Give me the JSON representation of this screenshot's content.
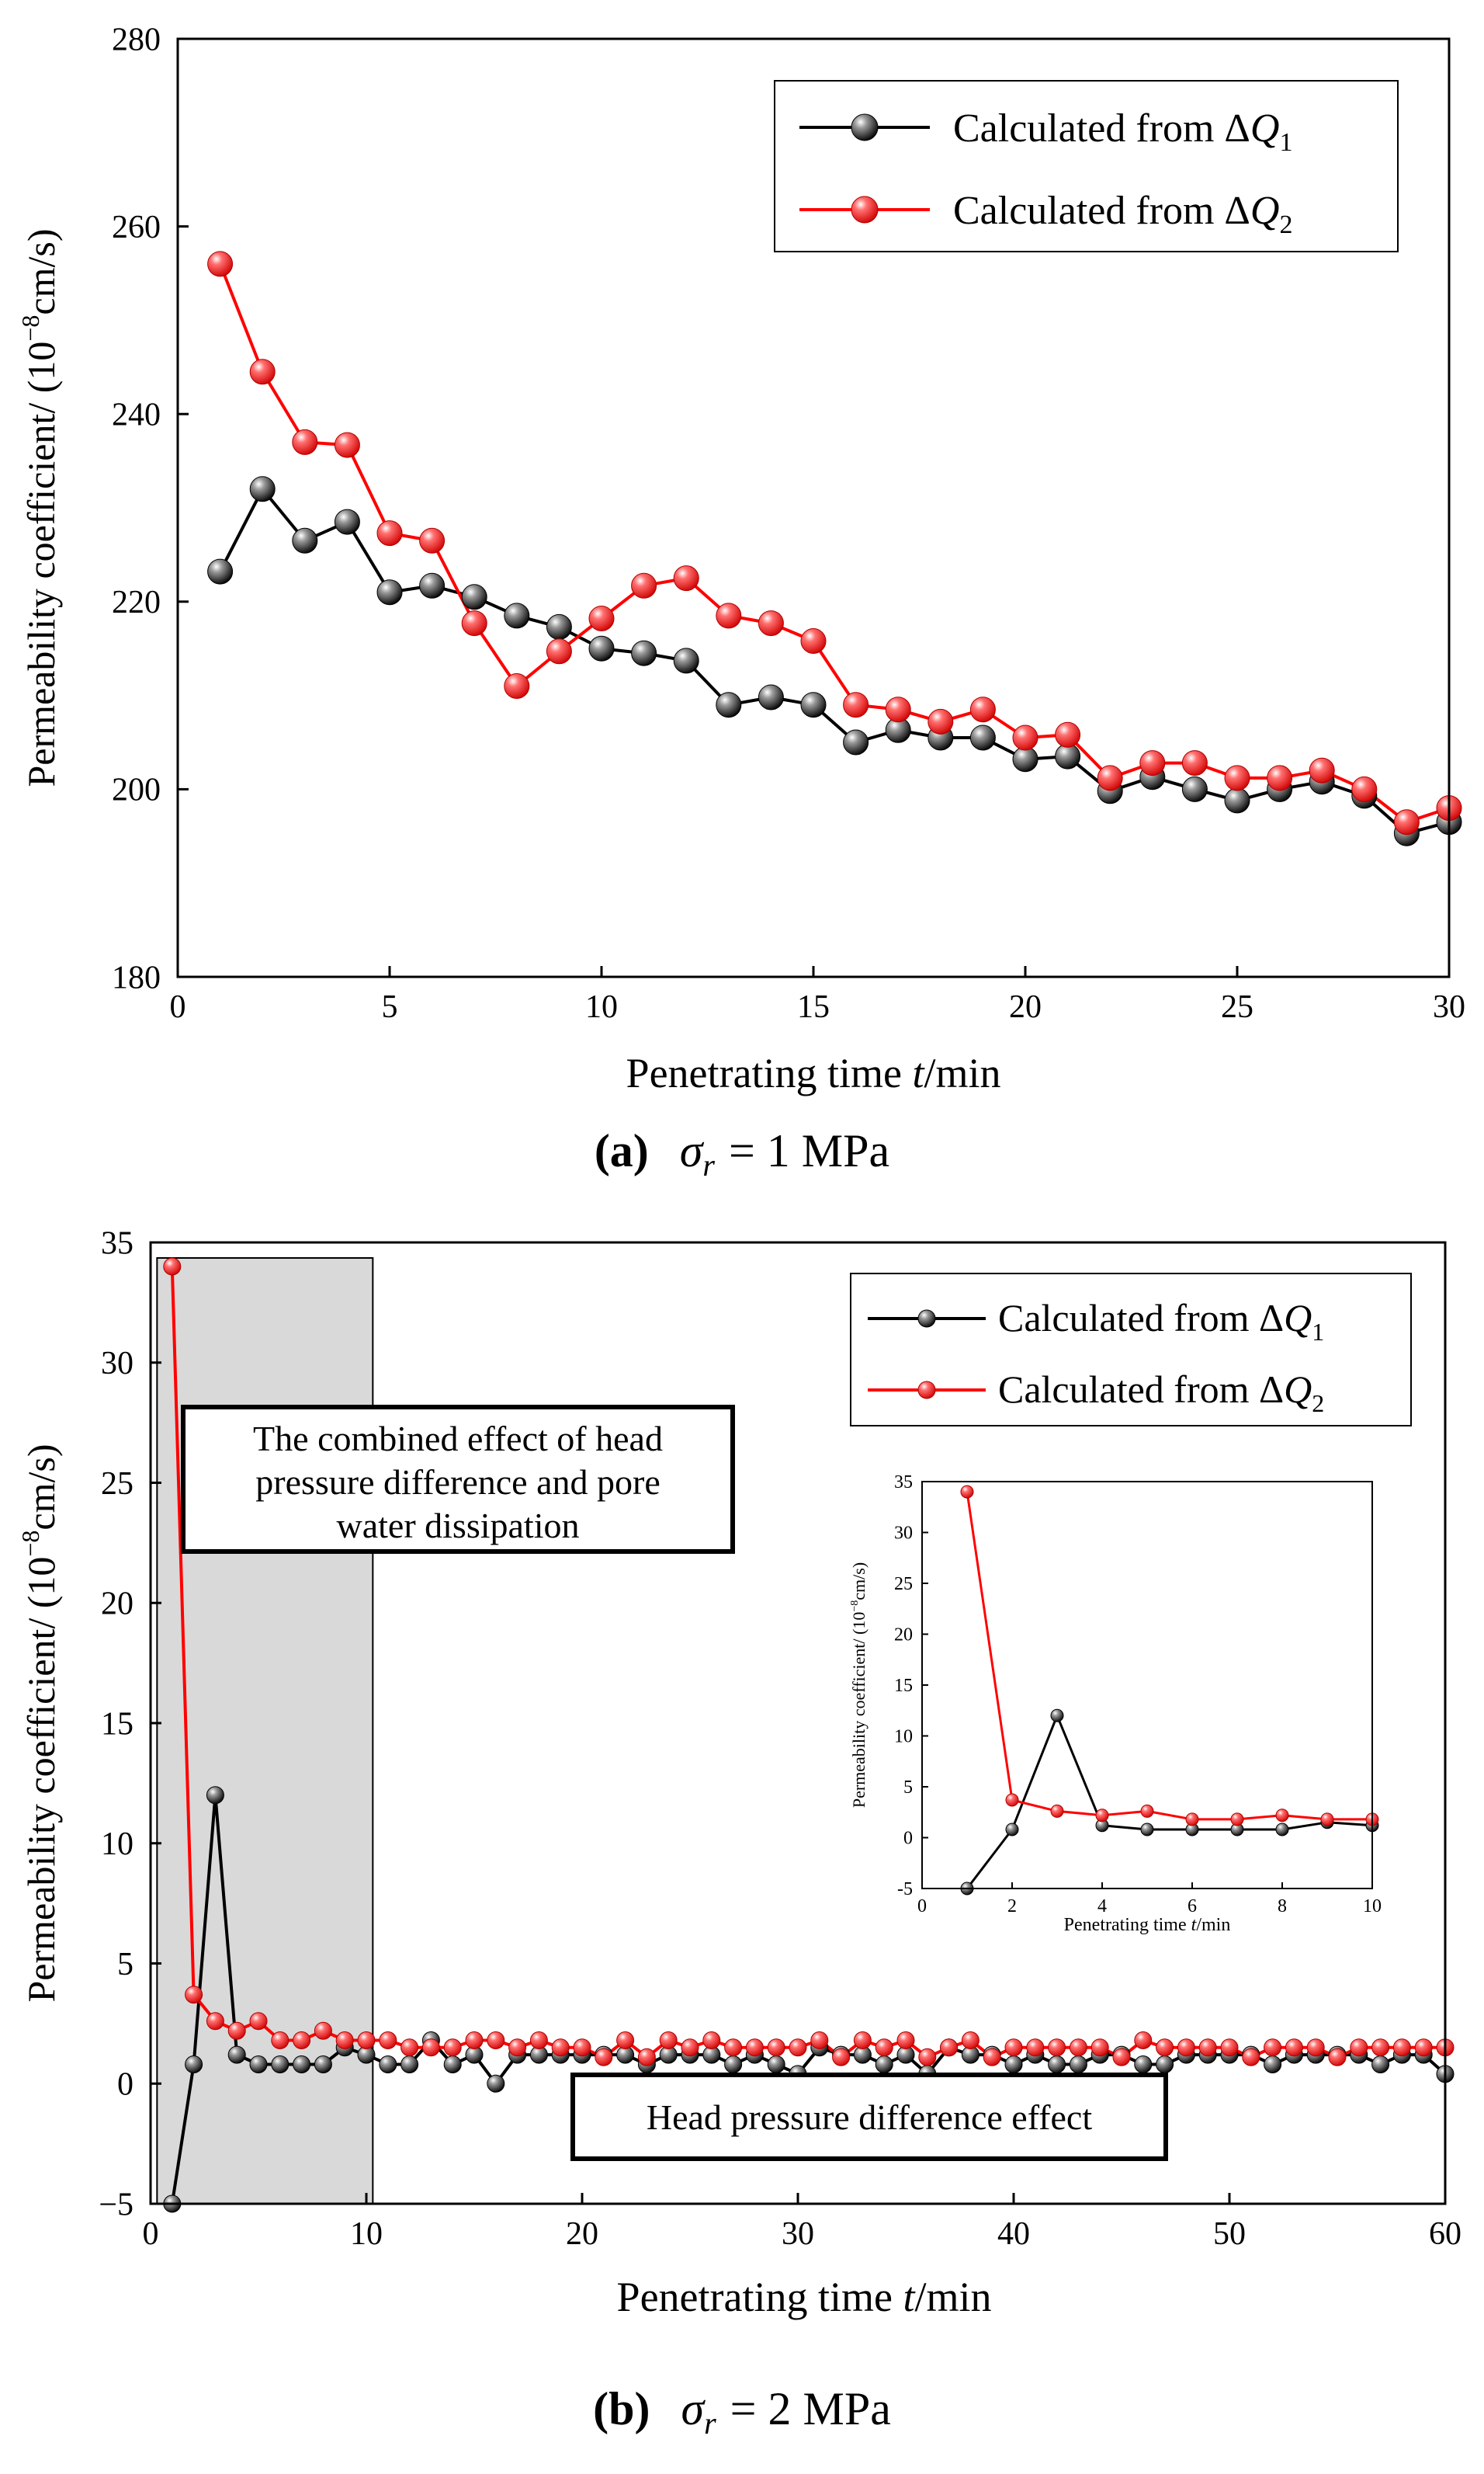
{
  "charts": [
    {
      "type": "line",
      "caption_letter": "(a)",
      "caption_sigma": "σ",
      "caption_sub": "r",
      "caption_value": "= 1 MPa",
      "xlabel_pre": "Penetrating time ",
      "xlabel_var": "t",
      "xlabel_post": "/min",
      "ylabel_pre": "Permeability coefficient/ (10",
      "ylabel_sup": "−8",
      "ylabel_post": "cm/s)",
      "xlim": [
        0,
        30
      ],
      "ylim": [
        180,
        280
      ],
      "xticks": [
        0,
        5,
        10,
        15,
        20,
        25,
        30
      ],
      "yticks": [
        180,
        200,
        220,
        240,
        260,
        280
      ],
      "legend_position": "top-right",
      "series": [
        {
          "name": "Calculated from ΔQ1",
          "legend_prefix": "Calculated from Δ",
          "legend_var": "Q",
          "legend_sub": "1",
          "color": "#000000",
          "x": [
            1,
            2,
            3,
            4,
            5,
            6,
            7,
            8,
            9,
            10,
            11,
            12,
            13,
            14,
            15,
            16,
            17,
            18,
            19,
            20,
            21,
            22,
            23,
            24,
            25,
            26,
            27,
            28,
            29,
            30
          ],
          "values": [
            223.2,
            232.0,
            226.5,
            228.5,
            221.0,
            221.7,
            220.5,
            218.5,
            217.3,
            215.0,
            214.5,
            213.7,
            209.0,
            209.8,
            209.0,
            205.0,
            206.3,
            205.5,
            205.5,
            203.2,
            203.5,
            199.8,
            201.3,
            200.0,
            198.8,
            200.0,
            200.8,
            199.3,
            195.3,
            196.5
          ]
        },
        {
          "name": "Calculated from ΔQ2",
          "legend_prefix": "Calculated from Δ",
          "legend_var": "Q",
          "legend_sub": "2",
          "color": "#ff0000",
          "x": [
            1,
            2,
            3,
            4,
            5,
            6,
            7,
            8,
            9,
            10,
            11,
            12,
            13,
            14,
            15,
            16,
            17,
            18,
            19,
            20,
            21,
            22,
            23,
            24,
            25,
            26,
            27,
            28,
            29,
            30
          ],
          "values": [
            256.0,
            244.5,
            237.0,
            236.7,
            227.3,
            226.5,
            217.7,
            211.0,
            214.7,
            218.2,
            221.7,
            222.5,
            218.5,
            217.7,
            215.8,
            209.0,
            208.5,
            207.2,
            208.5,
            205.5,
            205.8,
            201.2,
            202.8,
            202.8,
            201.2,
            201.2,
            202.0,
            200.0,
            196.5,
            198.0
          ]
        }
      ]
    },
    {
      "type": "line",
      "caption_letter": "(b)",
      "caption_sigma": "σ",
      "caption_sub": "r",
      "caption_value": "= 2 MPa",
      "xlabel_pre": "Penetrating time ",
      "xlabel_var": "t",
      "xlabel_post": "/min",
      "ylabel_pre": "Permeability coefficient/ (10",
      "ylabel_sup": "−8",
      "ylabel_post": "cm/s)",
      "xlim": [
        0,
        60
      ],
      "ylim": [
        -5,
        35
      ],
      "xticks": [
        0,
        10,
        20,
        30,
        40,
        50,
        60
      ],
      "yticks": [
        -5,
        0,
        5,
        10,
        15,
        20,
        25,
        30,
        35
      ],
      "ytick_labels": [
        "−5",
        "0",
        "5",
        "10",
        "15",
        "20",
        "25",
        "30",
        "35"
      ],
      "legend_position": "top-right",
      "shaded_region_x": [
        0.3,
        10.3
      ],
      "annotations": [
        {
          "lines": [
            "The combined effect of head",
            "pressure difference and pore",
            "water dissipation"
          ]
        },
        {
          "lines": [
            "Head pressure difference effect"
          ]
        }
      ],
      "series": [
        {
          "name": "Calculated from ΔQ1",
          "legend_prefix": "Calculated from Δ",
          "legend_var": "Q",
          "legend_sub": "1",
          "color": "#000000",
          "x": [
            1,
            2,
            3,
            4,
            5,
            6,
            7,
            8,
            9,
            10,
            11,
            12,
            13,
            14,
            15,
            16,
            17,
            18,
            19,
            20,
            21,
            22,
            23,
            24,
            25,
            26,
            27,
            28,
            29,
            30,
            31,
            32,
            33,
            34,
            35,
            36,
            37,
            38,
            39,
            40,
            41,
            42,
            43,
            44,
            45,
            46,
            47,
            48,
            49,
            50,
            51,
            52,
            53,
            54,
            55,
            56,
            57,
            58,
            59,
            60
          ],
          "values": [
            -5.0,
            0.8,
            12.0,
            1.2,
            0.8,
            0.8,
            0.8,
            0.8,
            1.5,
            1.2,
            0.8,
            0.8,
            1.8,
            0.8,
            1.2,
            0.0,
            1.2,
            1.2,
            1.2,
            1.2,
            1.2,
            1.2,
            0.8,
            1.2,
            1.2,
            1.2,
            0.8,
            1.2,
            0.8,
            0.4,
            1.5,
            1.2,
            1.2,
            0.8,
            1.2,
            0.4,
            1.5,
            1.2,
            1.2,
            0.8,
            1.2,
            0.8,
            0.8,
            1.2,
            1.2,
            0.8,
            0.8,
            1.2,
            1.2,
            1.2,
            1.2,
            0.8,
            1.2,
            1.2,
            1.2,
            1.2,
            0.8,
            1.2,
            1.2,
            0.4
          ]
        },
        {
          "name": "Calculated from ΔQ2",
          "legend_prefix": "Calculated from Δ",
          "legend_var": "Q",
          "legend_sub": "2",
          "color": "#ff0000",
          "x": [
            1,
            2,
            3,
            4,
            5,
            6,
            7,
            8,
            9,
            10,
            11,
            12,
            13,
            14,
            15,
            16,
            17,
            18,
            19,
            20,
            21,
            22,
            23,
            24,
            25,
            26,
            27,
            28,
            29,
            30,
            31,
            32,
            33,
            34,
            35,
            36,
            37,
            38,
            39,
            40,
            41,
            42,
            43,
            44,
            45,
            46,
            47,
            48,
            49,
            50,
            51,
            52,
            53,
            54,
            55,
            56,
            57,
            58,
            59,
            60
          ],
          "values": [
            34.0,
            3.7,
            2.6,
            2.2,
            2.6,
            1.8,
            1.8,
            2.2,
            1.8,
            1.8,
            1.8,
            1.5,
            1.5,
            1.5,
            1.8,
            1.8,
            1.5,
            1.8,
            1.5,
            1.5,
            1.1,
            1.8,
            1.1,
            1.8,
            1.5,
            1.8,
            1.5,
            1.5,
            1.5,
            1.5,
            1.8,
            1.1,
            1.8,
            1.5,
            1.8,
            1.1,
            1.5,
            1.8,
            1.1,
            1.5,
            1.5,
            1.5,
            1.5,
            1.5,
            1.1,
            1.8,
            1.5,
            1.5,
            1.5,
            1.5,
            1.1,
            1.5,
            1.5,
            1.5,
            1.1,
            1.5,
            1.5,
            1.5,
            1.5,
            1.5
          ]
        }
      ],
      "inset": {
        "xlim": [
          0,
          10
        ],
        "ylim": [
          -5,
          35
        ],
        "xticks": [
          0,
          2,
          4,
          6,
          8,
          10
        ],
        "yticks": [
          -5,
          0,
          5,
          10,
          15,
          20,
          25,
          30,
          35
        ],
        "ytick_labels": [
          "-5",
          "0",
          "5",
          "10",
          "15",
          "20",
          "25",
          "30",
          "35"
        ],
        "xlabel_pre": "Penetrating time ",
        "xlabel_var": "t",
        "xlabel_post": "/min",
        "ylabel_pre": "Permeability coefficient/ (10",
        "ylabel_sup": "−8",
        "ylabel_post": "cm/s)",
        "series": [
          {
            "name": "Calculated from ΔQ1",
            "color": "#000000",
            "x": [
              1,
              2,
              3,
              4,
              5,
              6,
              7,
              8,
              9,
              10
            ],
            "values": [
              -5.0,
              0.8,
              12.0,
              1.2,
              0.8,
              0.8,
              0.8,
              0.8,
              1.5,
              1.2
            ]
          },
          {
            "name": "Calculated from ΔQ2",
            "color": "#ff0000",
            "x": [
              1,
              2,
              3,
              4,
              5,
              6,
              7,
              8,
              9,
              10
            ],
            "values": [
              34.0,
              3.7,
              2.6,
              2.2,
              2.6,
              1.8,
              1.8,
              2.2,
              1.8,
              1.8
            ]
          }
        ]
      }
    }
  ]
}
